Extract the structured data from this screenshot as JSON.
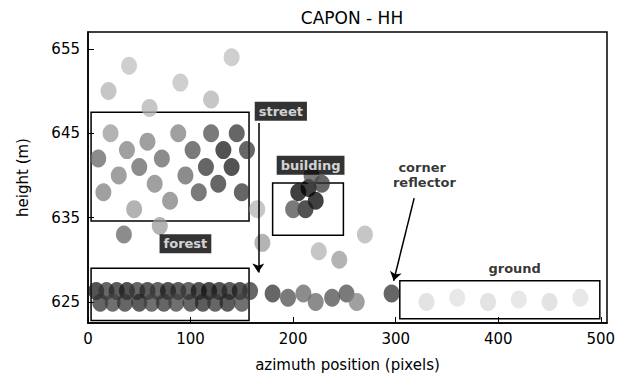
{
  "chart_data": {
    "type": "scatter",
    "title": "CAPON - HH",
    "x_label": "azimuth position (pixels)",
    "y_label": "height (m)",
    "xlim": [
      0,
      506
    ],
    "ylim": [
      622.5,
      657
    ],
    "xticks": [
      0,
      100,
      200,
      300,
      400,
      500
    ],
    "yticks": [
      625,
      635,
      645,
      655
    ],
    "grid": false,
    "color": "#000000",
    "scatterers": {
      "x": [
        8,
        18,
        28,
        38,
        48,
        58,
        68,
        78,
        88,
        98,
        108,
        118,
        128,
        138,
        148,
        158,
        12,
        24,
        36,
        50,
        62,
        74,
        86,
        100,
        112,
        124,
        136,
        150,
        10,
        15,
        22,
        30,
        38,
        45,
        50,
        58,
        65,
        72,
        80,
        88,
        95,
        102,
        108,
        115,
        120,
        127,
        132,
        140,
        145,
        150,
        155,
        35,
        70,
        20,
        40,
        60,
        90,
        120,
        140,
        205,
        215,
        222,
        212,
        228,
        200,
        218,
        170,
        165,
        180,
        195,
        210,
        222,
        238,
        252,
        262,
        245,
        225,
        270,
        296,
        330,
        360,
        390,
        420,
        450,
        480
      ],
      "y": [
        626.3,
        626.3,
        626.3,
        626.3,
        626.3,
        626.3,
        626.3,
        626.3,
        626.3,
        626.3,
        626.3,
        626.3,
        626.3,
        626.3,
        626.3,
        626.3,
        624.9,
        624.9,
        624.9,
        624.9,
        624.9,
        624.9,
        624.9,
        624.9,
        624.9,
        624.9,
        624.9,
        624.9,
        642,
        638,
        645,
        640,
        643,
        636,
        641,
        644,
        639,
        642,
        637,
        645,
        640,
        643,
        638,
        641,
        645,
        639,
        643,
        641,
        645,
        638,
        643,
        633,
        634,
        650,
        653,
        648,
        651,
        649,
        654,
        638,
        638.5,
        637,
        636,
        639,
        636,
        640,
        632,
        636,
        626,
        625.5,
        626,
        625,
        625.5,
        626,
        625,
        630,
        631,
        633,
        626,
        625,
        625.5,
        625,
        625.3,
        625,
        625.5
      ],
      "strength": [
        0.9,
        0.8,
        0.85,
        0.9,
        0.8,
        0.85,
        0.8,
        0.9,
        0.85,
        0.8,
        0.9,
        0.95,
        0.9,
        0.85,
        0.9,
        0.8,
        0.8,
        0.75,
        0.8,
        0.85,
        0.75,
        0.8,
        0.75,
        0.8,
        0.85,
        0.8,
        0.85,
        0.75,
        0.6,
        0.5,
        0.4,
        0.5,
        0.5,
        0.4,
        0.6,
        0.5,
        0.5,
        0.6,
        0.5,
        0.5,
        0.6,
        0.7,
        0.7,
        0.8,
        0.7,
        0.8,
        0.9,
        0.9,
        0.8,
        0.8,
        0.8,
        0.6,
        0.4,
        0.3,
        0.25,
        0.3,
        0.25,
        0.3,
        0.25,
        1,
        1,
        1,
        0.9,
        0.8,
        0.7,
        0.7,
        0.4,
        0.3,
        0.8,
        0.7,
        0.6,
        0.6,
        0.7,
        0.7,
        0.5,
        0.4,
        0.3,
        0.3,
        0.8,
        0.15,
        0.12,
        0.15,
        0.12,
        0.15,
        0.12
      ]
    },
    "regions": [
      {
        "x": [
          3,
          157
        ],
        "y": [
          634.6,
          647.5
        ]
      },
      {
        "x": [
          3,
          157
        ],
        "y": [
          622.8,
          629
        ]
      },
      {
        "x": [
          180,
          249
        ],
        "y": [
          632.9,
          639.1
        ]
      },
      {
        "x": [
          304,
          499
        ],
        "y": [
          623,
          627.5
        ]
      }
    ],
    "annotations": [
      {
        "text": "forest",
        "x": 95,
        "y": 631.9,
        "boxed": true
      },
      {
        "text": "street",
        "x": 188,
        "y": 647.6,
        "boxed": true,
        "arrow_from": [
          166,
          646.2
        ],
        "arrow_to": [
          166,
          628.5
        ]
      },
      {
        "text": "building",
        "x": 217,
        "y": 641.2,
        "boxed": true
      },
      {
        "text": "corner reflector",
        "x": 328,
        "y": 640,
        "boxed": false,
        "arrow_from": [
          318,
          637.3
        ],
        "arrow_to": [
          298,
          627.5
        ]
      },
      {
        "text": "ground",
        "x": 416,
        "y": 629,
        "boxed": false
      }
    ]
  }
}
